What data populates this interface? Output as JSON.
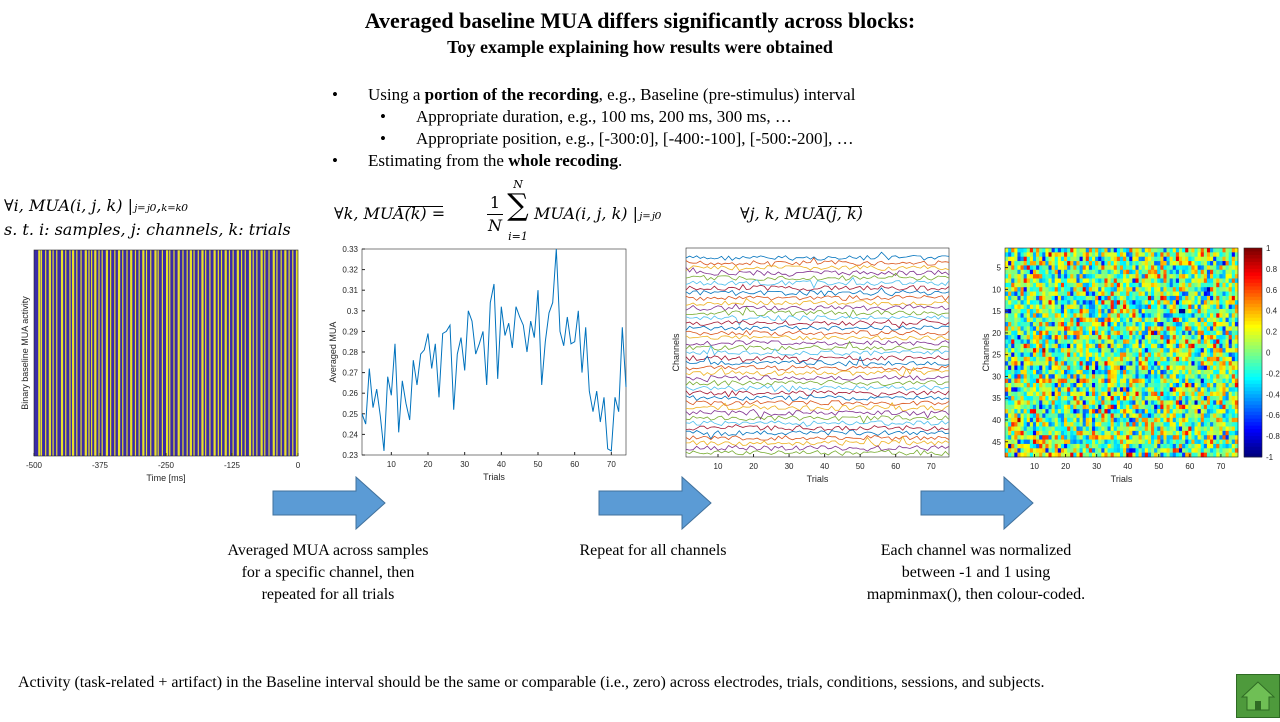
{
  "title": "Averaged baseline MUA differs significantly across blocks:",
  "subtitle": "Toy example explaining  how results were obtained",
  "bullets": {
    "b1_pre": "Using a ",
    "b1_bold": "portion of the recording",
    "b1_post": ", e.g., Baseline  (pre-stimulus)  interval",
    "b1a": "Appropriate duration, e.g., 100 ms, 200 ms, 300 ms, …",
    "b1b": "Appropriate position, e.g., [-300:0],  [-400:-100],  [-500:-200],  …",
    "b2_pre": "Estimating  from the ",
    "b2_bold": "whole recoding",
    "b2_post": ".",
    "dot": "•"
  },
  "equations": {
    "eq1_line1": "∀i,       MUA(i, j, k) |ⱼ₌ⱼ₀,ₖ₌ₖ₀",
    "eq1_line2": "s. t.    i: samples, j: channels, k: trials",
    "eq2_lhs": "∀k,      MUA(k) = ",
    "eq2_frac_num": "1",
    "eq2_frac_den": "N",
    "eq2_sum": "∑",
    "eq2_sum_top": "N",
    "eq2_sum_bottom": "i=1",
    "eq2_rhs": "MUA(i, j, k) |ⱼ₌ⱼ₀",
    "eq3": "∀j, k,      MUA(j, k)"
  },
  "captions": {
    "c1": [
      "Averaged MUA across samples",
      "for a specific channel, then",
      "repeated for all  trials"
    ],
    "c2": [
      "Repeat for all  channels"
    ],
    "c3": [
      "Each channel was normalized",
      "between -1 and 1 using",
      "mapminmax(),  then colour-coded."
    ]
  },
  "footer": "Activity  (task-related + artifact) in the Baseline  interval  should be the same or comparable (i.e., zero) across electrodes, trials,  conditions, sessions, and subjects.",
  "colors": {
    "arrow": "#5b9bd5",
    "arrow_border": "#41719c",
    "line": "#0072bd",
    "raster_bg": "#3b2ba6",
    "raster_line": "#e8e22a",
    "home": "#4e9a3c"
  },
  "chart_data": [
    {
      "type": "raster",
      "xlabel": "Time [ms]",
      "ylabel": "Binary baseline MUA activity",
      "xlim": [
        -500,
        0
      ],
      "xticks": [
        -500,
        -375,
        -250,
        -125,
        0
      ],
      "tick_labels": [
        "-500",
        "-375",
        "-250",
        "-125",
        "0"
      ],
      "event_times": [
        -492,
        -487,
        -479,
        -472,
        -465,
        -458,
        -449,
        -441,
        -433,
        -428,
        -420,
        -412,
        -404,
        -397,
        -392,
        -386,
        -378,
        -372,
        -364,
        -356,
        -348,
        -341,
        -333,
        -325,
        -318,
        -309,
        -302,
        -295,
        -288,
        -280,
        -272,
        -266,
        -258,
        -250,
        -244,
        -236,
        -228,
        -219,
        -211,
        -205,
        -198,
        -190,
        -183,
        -176,
        -168,
        -160,
        -152,
        -146,
        -139,
        -131,
        -124,
        -116,
        -108,
        -101,
        -93,
        -86,
        -79,
        -71,
        -64,
        -56,
        -48,
        -41,
        -33,
        -26,
        -18,
        -11,
        -4
      ]
    },
    {
      "type": "line",
      "xlabel": "Trials",
      "ylabel": "Averaged MUA",
      "xlim": [
        2,
        74
      ],
      "ylim": [
        0.23,
        0.33
      ],
      "xticks": [
        10,
        20,
        30,
        40,
        50,
        60,
        70
      ],
      "yticks": [
        0.23,
        0.24,
        0.25,
        0.26,
        0.27,
        0.28,
        0.29,
        0.3,
        0.31,
        0.32,
        0.33
      ],
      "ytick_labels": [
        "0.23",
        "0.24",
        "0.25",
        "0.26",
        "0.27",
        "0.28",
        "0.29",
        "0.3",
        "0.31",
        "0.32",
        "0.33"
      ],
      "x": [
        2,
        3,
        4,
        5,
        6,
        7,
        8,
        9,
        10,
        11,
        12,
        13,
        14,
        15,
        16,
        17,
        18,
        19,
        20,
        21,
        22,
        23,
        24,
        25,
        26,
        27,
        28,
        29,
        30,
        31,
        32,
        33,
        34,
        35,
        36,
        37,
        38,
        39,
        40,
        41,
        42,
        43,
        44,
        45,
        46,
        47,
        48,
        49,
        50,
        51,
        52,
        53,
        54,
        55,
        56,
        57,
        58,
        59,
        60,
        61,
        62,
        63,
        64,
        65,
        66,
        67,
        68,
        69,
        70,
        71,
        72,
        73,
        74
      ],
      "values": [
        0.25,
        0.245,
        0.272,
        0.253,
        0.262,
        0.249,
        0.232,
        0.268,
        0.259,
        0.284,
        0.241,
        0.266,
        0.255,
        0.247,
        0.276,
        0.264,
        0.279,
        0.281,
        0.289,
        0.272,
        0.284,
        0.258,
        0.289,
        0.29,
        0.293,
        0.252,
        0.279,
        0.287,
        0.271,
        0.3,
        0.295,
        0.279,
        0.284,
        0.29,
        0.264,
        0.304,
        0.313,
        0.267,
        0.302,
        0.288,
        0.294,
        0.282,
        0.302,
        0.297,
        0.293,
        0.28,
        0.295,
        0.287,
        0.31,
        0.264,
        0.285,
        0.299,
        0.304,
        0.33,
        0.29,
        0.283,
        0.297,
        0.284,
        0.285,
        0.3,
        0.27,
        0.292,
        0.261,
        0.251,
        0.261,
        0.246,
        0.258,
        0.233,
        0.232,
        0.258,
        0.251,
        0.292,
        0.263
      ],
      "series_color": "#0072bd"
    },
    {
      "type": "line",
      "xlabel": "Trials",
      "ylabel": "Channels",
      "xlim": [
        1,
        75
      ],
      "xticks": [
        10,
        20,
        30,
        40,
        50,
        60,
        70
      ],
      "n_channels": 40,
      "note_values": "offset traces per channel"
    },
    {
      "type": "heatmap",
      "xlabel": "Trials",
      "ylabel": "Channels",
      "xlim": [
        1,
        75
      ],
      "ylim": [
        1,
        48
      ],
      "xticks": [
        10,
        20,
        30,
        40,
        50,
        60,
        70
      ],
      "yticks": [
        5,
        10,
        15,
        20,
        25,
        30,
        35,
        40,
        45
      ],
      "colorbar_ticks": [
        1,
        0.8,
        0.6,
        0.4,
        0.2,
        0,
        -0.2,
        -0.4,
        -0.6,
        -0.8,
        -1
      ],
      "colorbar_labels": [
        "1",
        "0.8",
        "0.6",
        "0.4",
        "0.2",
        "0",
        "-0.2",
        "-0.4",
        "-0.6",
        "-0.8",
        "-1"
      ],
      "range": [
        -1,
        1
      ]
    }
  ]
}
